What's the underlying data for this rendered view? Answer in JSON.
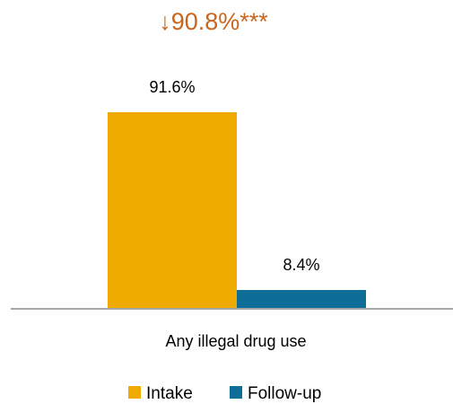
{
  "chart_data": {
    "type": "bar",
    "categories": [
      "Any illegal drug use"
    ],
    "series": [
      {
        "name": "Intake",
        "values": [
          91.6
        ],
        "labels": [
          "91.6%"
        ],
        "color": "#F0AB00"
      },
      {
        "name": "Follow-up",
        "values": [
          8.4
        ],
        "labels": [
          "8.4%"
        ],
        "color": "#0F6E98"
      }
    ],
    "annotation": {
      "arrow": "↓",
      "text": "90.8%***",
      "color": "#C8661E"
    },
    "ylim": [
      0,
      100
    ],
    "grid": false,
    "legend_position": "bottom"
  }
}
